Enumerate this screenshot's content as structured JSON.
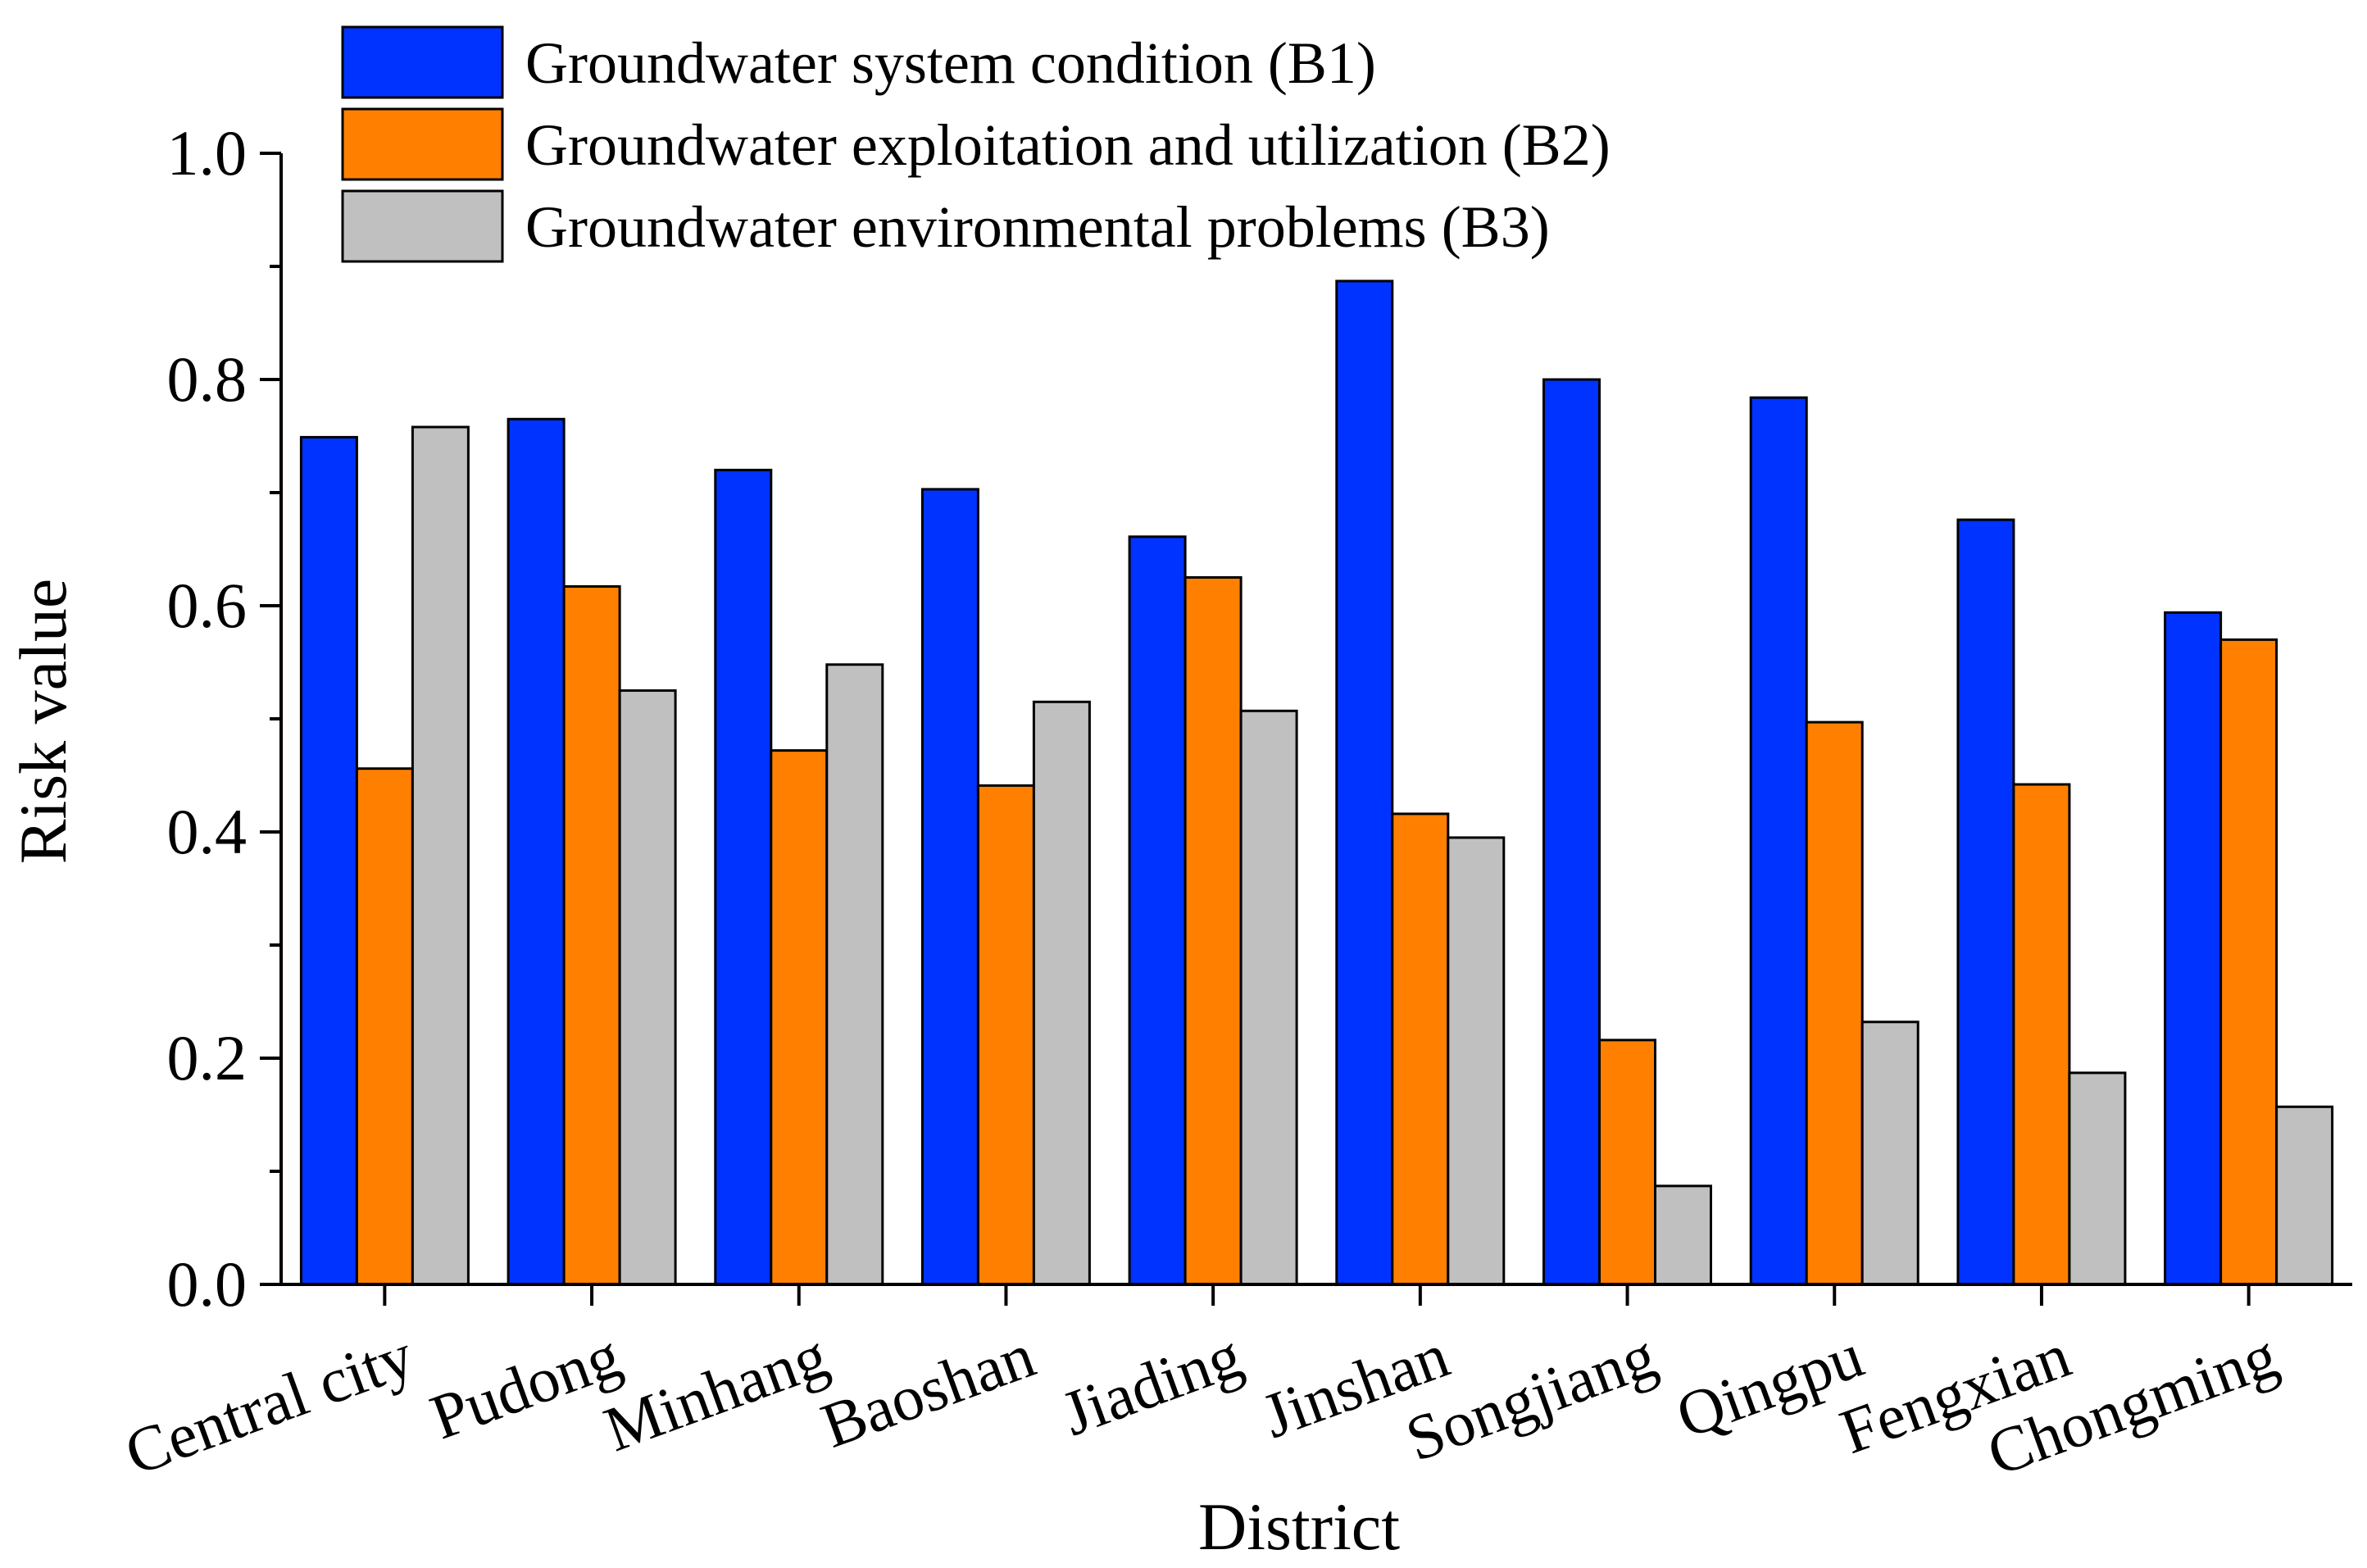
{
  "chart_data": {
    "type": "bar",
    "title": "",
    "xlabel": "District",
    "ylabel": "Risk value",
    "ylim": [
      0,
      1.0
    ],
    "yticks": [
      "0.0",
      "0.2",
      "0.4",
      "0.6",
      "0.8",
      "1.0"
    ],
    "yticks_values": [
      0,
      0.2,
      0.4,
      0.6,
      0.8,
      1.0
    ],
    "categories": [
      "Central city",
      "Pudong",
      "Minhang",
      "Baoshan",
      "Jiading",
      "Jinshan",
      "Songjiang",
      "Qingpu",
      "Fengxian",
      "Chongming"
    ],
    "series": [
      {
        "name": "Groundwater system condition (B1)",
        "color": "#0033ff",
        "values": [
          0.749,
          0.765,
          0.72,
          0.703,
          0.661,
          0.887,
          0.8,
          0.784,
          0.676,
          0.594
        ]
      },
      {
        "name": "Groundwater exploitation and utilization (B2)",
        "color": "#ff8000",
        "values": [
          0.456,
          0.617,
          0.472,
          0.441,
          0.625,
          0.416,
          0.216,
          0.497,
          0.442,
          0.57
        ]
      },
      {
        "name": "Groundwater environmental problems (B3)",
        "color": "#c0c0c0",
        "values": [
          0.758,
          0.525,
          0.548,
          0.515,
          0.507,
          0.395,
          0.087,
          0.232,
          0.187,
          0.157
        ]
      }
    ],
    "legend_position": "top"
  }
}
